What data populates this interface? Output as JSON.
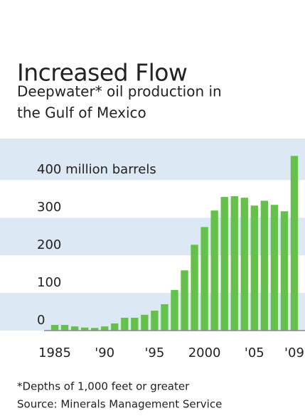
{
  "chart_data": {
    "type": "bar",
    "title": "Increased Flow",
    "subtitle": [
      "Deepwater* oil production in",
      "the Gulf of Mexico"
    ],
    "categories": [
      "1985",
      null,
      null,
      null,
      null,
      "'90",
      null,
      null,
      null,
      null,
      "'95",
      null,
      null,
      null,
      null,
      "2000",
      null,
      null,
      null,
      null,
      "'05",
      null,
      null,
      null,
      "'09"
    ],
    "values": [
      15,
      15,
      11,
      8,
      7,
      11,
      19,
      34,
      34,
      42,
      53,
      70,
      108,
      160,
      228,
      275,
      319,
      355,
      357,
      353,
      332,
      345,
      334,
      317,
      464
    ],
    "color": "#66c04c",
    "ylim": [
      0,
      510
    ],
    "yticks": [
      0,
      100,
      200,
      300,
      {
        "value": 400,
        "label": "400 million barrels"
      }
    ],
    "grid": true,
    "notes": [
      "*Depths of 1,000 feet or greater",
      "Source: Minerals Management Service"
    ]
  }
}
